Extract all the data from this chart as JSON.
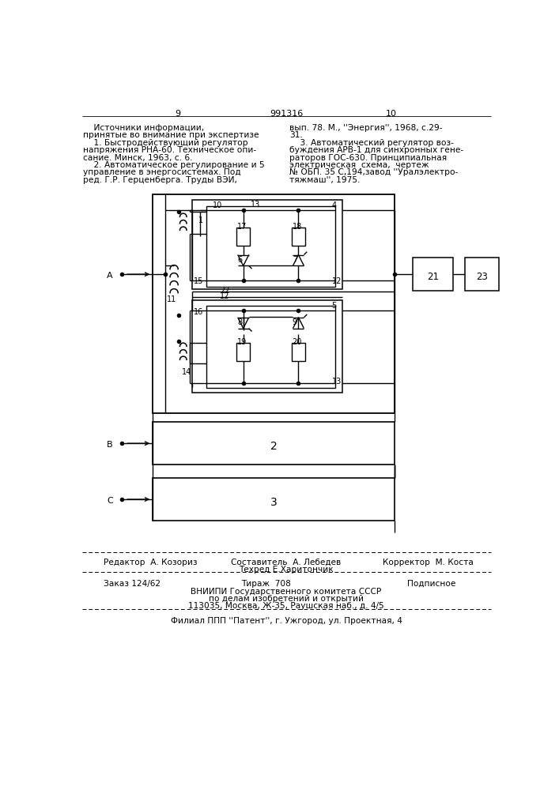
{
  "page_numbers": [
    "9",
    "991316",
    "10"
  ],
  "left_lines": [
    "    Источники информации,",
    "принятые во внимание при экспертизе",
    "    1. Быстродействующий регулятор",
    "напряжения РНА-60. Техническое опи-",
    "сание. Минск, 1963, с. 6.",
    "    2. Автоматическое регулирование и 5",
    "управление в энергосистемах. Под",
    "ред. Г.Р. Герценберга. Труды ВЭИ,"
  ],
  "right_lines": [
    "вып. 78. М., ''Энергия'', 1968, с.29-",
    "31.",
    "    3. Автоматический регулятор воз-",
    "буждения АРВ-1 для синхронных гене-",
    "раторов ГОС-630. Принципиальная",
    "электрическая  схема,  чертеж",
    "№ ОБП. 35 С,194,завод ''Уралэлектро-",
    "тяжмаш'', 1975."
  ],
  "bg_color": "#ffffff"
}
